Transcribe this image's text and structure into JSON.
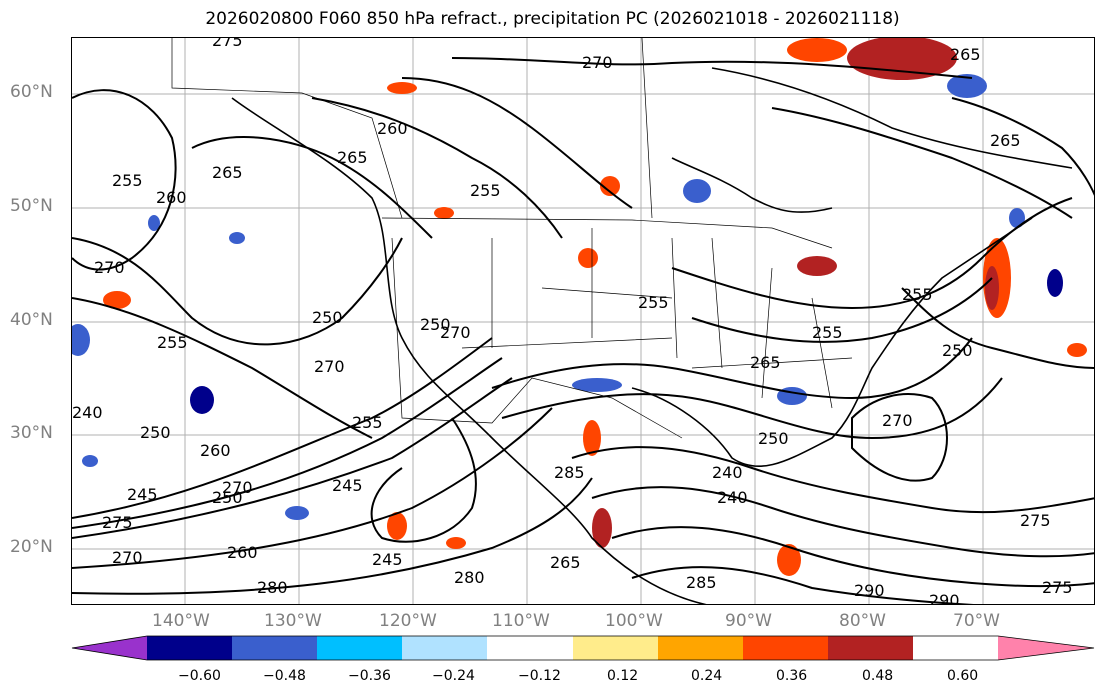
{
  "title": "2026020800 F060 850 hPa refract., precipitation PC (2026021018 - 2026021118)",
  "map": {
    "lat_labels": [
      "60°N",
      "50°N",
      "40°N",
      "30°N",
      "20°N"
    ],
    "lon_labels": [
      "140°W",
      "130°W",
      "120°W",
      "110°W",
      "100°W",
      "90°W",
      "80°W",
      "70°W"
    ],
    "contour_labels": [
      "275",
      "270",
      "265",
      "265",
      "260",
      "265",
      "265",
      "255",
      "260",
      "255",
      "270",
      "250",
      "255",
      "255",
      "250",
      "285",
      "270",
      "255",
      "240",
      "270",
      "255",
      "250",
      "265",
      "255",
      "250",
      "270",
      "250",
      "260",
      "240",
      "245",
      "270",
      "245",
      "250",
      "275",
      "245",
      "260",
      "265",
      "285",
      "240",
      "280",
      "270",
      "275",
      "280",
      "290",
      "290",
      "275"
    ]
  },
  "colorbar": {
    "ticks": [
      "−0.60",
      "−0.48",
      "−0.36",
      "−0.24",
      "−0.12",
      "0.12",
      "0.24",
      "0.36",
      "0.48",
      "0.60"
    ],
    "colors": [
      "#9932cc",
      "#00008b",
      "#3a5fcd",
      "#00bfff",
      "#b0e2ff",
      "#ffffff",
      "#ffec8b",
      "#ffa500",
      "#ff4500",
      "#b22222",
      "#ff82ab"
    ]
  }
}
